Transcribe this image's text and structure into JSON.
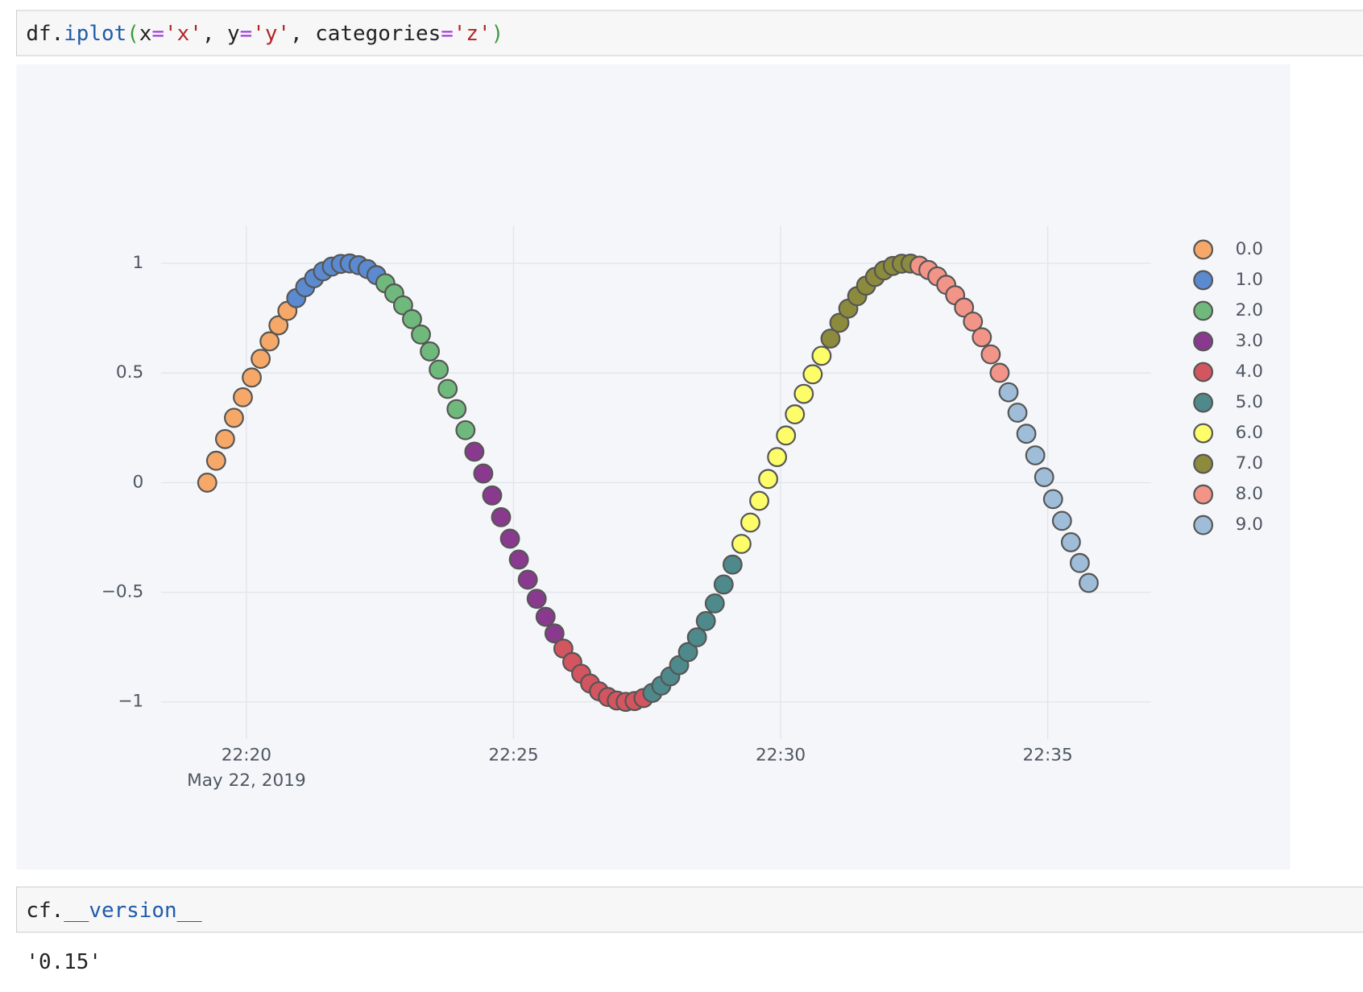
{
  "cells": [
    {
      "tokens": [
        "df.",
        "iplot",
        "(",
        "x",
        "=",
        "'x'",
        ", y",
        "=",
        "'y'",
        ", categories",
        "=",
        "'z'",
        ")"
      ]
    },
    {
      "tokens": [
        "cf.",
        "__version__"
      ],
      "output": "'0.15'"
    }
  ],
  "chart_data": {
    "type": "scatter",
    "x_date_label": "May 22, 2019",
    "xlim": [
      "2019-05-22 22:18:24",
      "2019-05-22 22:36:56"
    ],
    "xticks": [
      {
        "value": "2019-05-22 22:20:00",
        "label": "22:20"
      },
      {
        "value": "2019-05-22 22:25:00",
        "label": "22:25"
      },
      {
        "value": "2019-05-22 22:30:00",
        "label": "22:30"
      },
      {
        "value": "2019-05-22 22:35:00",
        "label": "22:35"
      }
    ],
    "ylim": [
      -1.17,
      1.17
    ],
    "yticks": [
      {
        "value": -1,
        "label": "−1"
      },
      {
        "value": -0.5,
        "label": "−0.5"
      },
      0,
      0.5,
      1
    ],
    "grid": true,
    "legend": "right",
    "series": [
      {
        "name": "0.0",
        "color": "#f6a868",
        "x": [
          "2019-05-22 22:19:16",
          "2019-05-22 22:19:26",
          "2019-05-22 22:19:36",
          "2019-05-22 22:19:46",
          "2019-05-22 22:19:56",
          "2019-05-22 22:20:06",
          "2019-05-22 22:20:16",
          "2019-05-22 22:20:26",
          "2019-05-22 22:20:36",
          "2019-05-22 22:20:46"
        ],
        "values": [
          0,
          0.0998,
          0.1987,
          0.2955,
          0.3894,
          0.4794,
          0.5646,
          0.6442,
          0.7174,
          0.7833
        ]
      },
      {
        "name": "1.0",
        "color": "#5b8ad0",
        "x": [
          "2019-05-22 22:20:56",
          "2019-05-22 22:21:06",
          "2019-05-22 22:21:16",
          "2019-05-22 22:21:26",
          "2019-05-22 22:21:36",
          "2019-05-22 22:21:46",
          "2019-05-22 22:21:56",
          "2019-05-22 22:22:06",
          "2019-05-22 22:22:16",
          "2019-05-22 22:22:26"
        ],
        "values": [
          0.8415,
          0.8912,
          0.932,
          0.9636,
          0.9854,
          0.9975,
          0.9996,
          0.9917,
          0.9738,
          0.9463
        ]
      },
      {
        "name": "2.0",
        "color": "#70b97c",
        "x": [
          "2019-05-22 22:22:36",
          "2019-05-22 22:22:46",
          "2019-05-22 22:22:56",
          "2019-05-22 22:23:06",
          "2019-05-22 22:23:16",
          "2019-05-22 22:23:26",
          "2019-05-22 22:23:36",
          "2019-05-22 22:23:46",
          "2019-05-22 22:23:56",
          "2019-05-22 22:24:06"
        ],
        "values": [
          0.9093,
          0.8632,
          0.8085,
          0.7457,
          0.6755,
          0.5985,
          0.5155,
          0.4274,
          0.335,
          0.2392
        ]
      },
      {
        "name": "3.0",
        "color": "#8a3a8e",
        "x": [
          "2019-05-22 22:24:16",
          "2019-05-22 22:24:26",
          "2019-05-22 22:24:36",
          "2019-05-22 22:24:46",
          "2019-05-22 22:24:56",
          "2019-05-22 22:25:06",
          "2019-05-22 22:25:16",
          "2019-05-22 22:25:26",
          "2019-05-22 22:25:36",
          "2019-05-22 22:25:46"
        ],
        "values": [
          0.1411,
          0.0416,
          -0.0584,
          -0.1577,
          -0.2555,
          -0.3508,
          -0.4425,
          -0.5298,
          -0.6119,
          -0.6878
        ]
      },
      {
        "name": "4.0",
        "color": "#d2555f",
        "x": [
          "2019-05-22 22:25:56",
          "2019-05-22 22:26:06",
          "2019-05-22 22:26:16",
          "2019-05-22 22:26:26",
          "2019-05-22 22:26:36",
          "2019-05-22 22:26:46",
          "2019-05-22 22:26:56",
          "2019-05-22 22:27:06",
          "2019-05-22 22:27:16",
          "2019-05-22 22:27:26"
        ],
        "values": [
          -0.7568,
          -0.8183,
          -0.8716,
          -0.9162,
          -0.9516,
          -0.9775,
          -0.9937,
          -0.9999,
          -0.9962,
          -0.9825
        ]
      },
      {
        "name": "5.0",
        "color": "#4e8a8b",
        "x": [
          "2019-05-22 22:27:36",
          "2019-05-22 22:27:46",
          "2019-05-22 22:27:56",
          "2019-05-22 22:28:06",
          "2019-05-22 22:28:16",
          "2019-05-22 22:28:26",
          "2019-05-22 22:28:36",
          "2019-05-22 22:28:46",
          "2019-05-22 22:28:56",
          "2019-05-22 22:29:06"
        ],
        "values": [
          -0.9589,
          -0.9258,
          -0.8835,
          -0.8323,
          -0.7728,
          -0.7055,
          -0.6313,
          -0.5507,
          -0.4646,
          -0.3739
        ]
      },
      {
        "name": "6.0",
        "color": "#fdfd6a",
        "x": [
          "2019-05-22 22:29:16",
          "2019-05-22 22:29:26",
          "2019-05-22 22:29:36",
          "2019-05-22 22:29:46",
          "2019-05-22 22:29:56",
          "2019-05-22 22:30:06",
          "2019-05-22 22:30:16",
          "2019-05-22 22:30:26",
          "2019-05-22 22:30:36",
          "2019-05-22 22:30:46"
        ],
        "values": [
          -0.2794,
          -0.1822,
          -0.0831,
          0.0168,
          0.1165,
          0.2151,
          0.3115,
          0.4048,
          0.4941,
          0.5784
        ]
      },
      {
        "name": "7.0",
        "color": "#8c8a3c",
        "x": [
          "2019-05-22 22:30:56",
          "2019-05-22 22:31:06",
          "2019-05-22 22:31:16",
          "2019-05-22 22:31:26",
          "2019-05-22 22:31:36",
          "2019-05-22 22:31:46",
          "2019-05-22 22:31:56",
          "2019-05-22 22:32:06",
          "2019-05-22 22:32:16",
          "2019-05-22 22:32:26"
        ],
        "values": [
          0.657,
          0.729,
          0.7937,
          0.8504,
          0.8987,
          0.938,
          0.9679,
          0.9882,
          0.9985,
          0.9989
        ]
      },
      {
        "name": "8.0",
        "color": "#f29488",
        "x": [
          "2019-05-22 22:32:36",
          "2019-05-22 22:32:46",
          "2019-05-22 22:32:56",
          "2019-05-22 22:33:06",
          "2019-05-22 22:33:16",
          "2019-05-22 22:33:26",
          "2019-05-22 22:33:36",
          "2019-05-22 22:33:46",
          "2019-05-22 22:33:56",
          "2019-05-22 22:34:06"
        ],
        "values": [
          0.9894,
          0.9699,
          0.9407,
          0.9022,
          0.8546,
          0.7985,
          0.7344,
          0.663,
          0.5849,
          0.501
        ]
      },
      {
        "name": "9.0",
        "color": "#9fbdd8",
        "x": [
          "2019-05-22 22:34:16",
          "2019-05-22 22:34:26",
          "2019-05-22 22:34:36",
          "2019-05-22 22:34:46",
          "2019-05-22 22:34:56",
          "2019-05-22 22:35:06",
          "2019-05-22 22:35:16",
          "2019-05-22 22:35:26",
          "2019-05-22 22:35:36",
          "2019-05-22 22:35:46"
        ],
        "values": [
          0.4121,
          0.3191,
          0.2229,
          0.1245,
          0.0248,
          -0.0752,
          -0.1743,
          -0.2718,
          -0.3665,
          -0.4575
        ]
      }
    ]
  }
}
